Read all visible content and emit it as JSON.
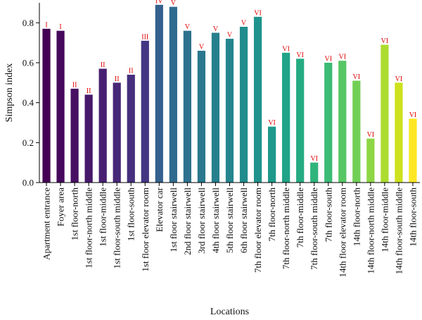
{
  "chart_data": {
    "type": "bar",
    "xlabel": "Locations",
    "ylabel": "Simpson index",
    "ylim": [
      0,
      0.9
    ],
    "yticks": [
      "0.0",
      "0.2",
      "0.4",
      "0.6",
      "0.8"
    ],
    "grid": false,
    "categories": [
      "Apartment entrance",
      "Foyer area",
      "1st floor-north",
      "1st floor-north middle",
      "1st floor-middle",
      "1st floor-south middle",
      "1st floor-south",
      "1st floor elevator room",
      "Elevator car",
      "1st floor stairwell",
      "2nd floor stairwell",
      "3rd floor stairwell",
      "4th floor stairwell",
      "5th floor stairwell",
      "6th floor stairwell",
      "7th floor elevator room",
      "7th floor-north",
      "7th floor-north middle",
      "7th floor-middle",
      "7th floor-south middle",
      "7th floor-south",
      "14th floor elevator room",
      "14th floor-north",
      "14th floor-north middle",
      "14th floor-middle",
      "14th floor-south middle",
      "14th floor-south"
    ],
    "values": [
      0.77,
      0.76,
      0.47,
      0.44,
      0.57,
      0.5,
      0.54,
      0.71,
      0.89,
      0.88,
      0.76,
      0.66,
      0.75,
      0.72,
      0.78,
      0.83,
      0.28,
      0.65,
      0.62,
      0.1,
      0.6,
      0.61,
      0.51,
      0.22,
      0.69,
      0.5,
      0.32
    ],
    "group_labels": [
      "I",
      "I",
      "II",
      "II",
      "II",
      "II",
      "II",
      "III",
      "IV",
      "V",
      "V",
      "V",
      "V",
      "V",
      "V",
      "VI",
      "VI",
      "VI",
      "VI",
      "VI",
      "VI",
      "VI",
      "VI",
      "VI",
      "VI",
      "VI",
      "VI"
    ],
    "colors": [
      "#440154",
      "#46085c",
      "#471063",
      "#48186a",
      "#482071",
      "#472777",
      "#462f7e",
      "#443683",
      "#34618d",
      "#2f6b8e",
      "#2d718e",
      "#2a788e",
      "#277f8e",
      "#25858e",
      "#228c8d",
      "#20928c",
      "#1f998a",
      "#20a386",
      "#25ab82",
      "#30b47c",
      "#3bbb75",
      "#57c665",
      "#72cf56",
      "#8dd645",
      "#addc30",
      "#cde11d",
      "#fde725"
    ],
    "group_label_color": "#e00000"
  }
}
